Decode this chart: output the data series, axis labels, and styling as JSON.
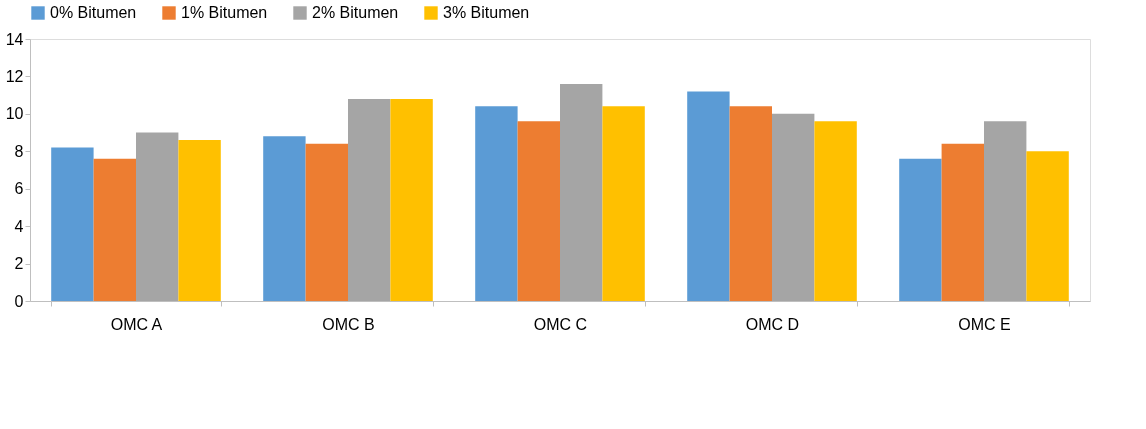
{
  "chart_data": {
    "type": "bar",
    "categories": [
      "OMC A",
      "OMC B",
      "OMC C",
      "OMC D",
      "OMC E"
    ],
    "series": [
      {
        "name": "0% Bitumen",
        "color": "#5b9bd5",
        "values": [
          8.2,
          8.8,
          10.4,
          11.2,
          7.6
        ]
      },
      {
        "name": "1% Bitumen",
        "color": "#ed7d31",
        "values": [
          7.6,
          8.4,
          9.6,
          10.4,
          8.4
        ]
      },
      {
        "name": "2% Bitumen",
        "color": "#a5a5a5",
        "values": [
          9.0,
          10.8,
          11.6,
          10.0,
          9.6
        ]
      },
      {
        "name": "3% Bitumen",
        "color": "#ffc000",
        "values": [
          8.6,
          10.8,
          10.4,
          9.6,
          8.0
        ]
      }
    ],
    "ylim": [
      0,
      14
    ],
    "yticks": [
      0,
      2,
      4,
      6,
      8,
      10,
      12,
      14
    ],
    "grid": false,
    "legend": "top"
  }
}
